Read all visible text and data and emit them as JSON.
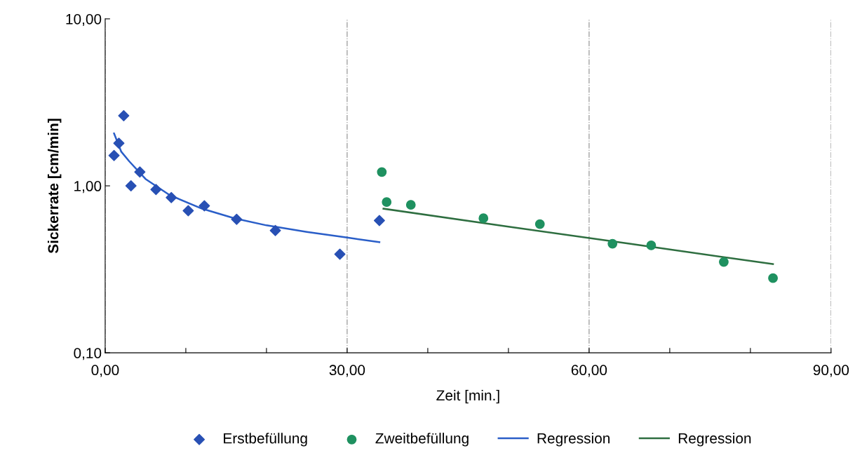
{
  "chart_data": {
    "type": "scatter",
    "xlabel": "Zeit [min.]",
    "ylabel": "Sickerrate [cm/min]",
    "log": "y",
    "grid": "x",
    "legend": "bottom",
    "xlim": [
      0,
      90
    ],
    "xticks": [
      {
        "value": 0,
        "label": "0,00"
      },
      {
        "value": 10,
        "label": null
      },
      {
        "value": 20,
        "label": null
      },
      {
        "value": 30,
        "label": "30,00"
      },
      {
        "value": 40,
        "label": null
      },
      {
        "value": 50,
        "label": null
      },
      {
        "value": 60,
        "label": "60,00"
      },
      {
        "value": 70,
        "label": null
      },
      {
        "value": 80,
        "label": null
      },
      {
        "value": 90,
        "label": "90,00"
      }
    ],
    "ylim": [
      0.1,
      10
    ],
    "yticks": [
      {
        "value": 0.1,
        "label": "0,10"
      },
      {
        "value": 1,
        "label": "1,00"
      },
      {
        "value": 10,
        "label": "10,00"
      }
    ],
    "series": [
      {
        "name": "Erstbefüllung",
        "marker": "diamond",
        "color": "#2850b4",
        "x": [
          1.1,
          1.7,
          2.3,
          3.2,
          4.3,
          6.3,
          8.2,
          10.3,
          12.3,
          16.3,
          21.1,
          29.1,
          34.0
        ],
        "values": [
          1.52,
          1.8,
          2.63,
          1.0,
          1.21,
          0.95,
          0.85,
          0.71,
          0.76,
          0.63,
          0.54,
          0.39,
          0.62
        ]
      },
      {
        "name": "Zweitbefüllung",
        "marker": "circle",
        "color": "#1f9160",
        "x": [
          34.3,
          34.9,
          37.9,
          46.9,
          53.9,
          62.9,
          67.7,
          76.7,
          82.8
        ],
        "values": [
          1.21,
          0.8,
          0.77,
          0.64,
          0.59,
          0.45,
          0.44,
          0.35,
          0.28
        ]
      },
      {
        "name": "Regression",
        "type": "line",
        "marker": "none",
        "color": "#2a5ec8",
        "x": [
          1.1,
          2,
          3,
          5,
          8,
          12,
          16,
          20,
          25,
          30,
          34
        ],
        "values": [
          2.06,
          1.6,
          1.4,
          1.1,
          0.88,
          0.73,
          0.64,
          0.58,
          0.53,
          0.49,
          0.46
        ]
      },
      {
        "name": "Regression",
        "type": "line",
        "marker": "none",
        "color": "#2e6e40",
        "x": [
          34.5,
          50,
          65,
          82.8
        ],
        "values": [
          0.73,
          0.57,
          0.45,
          0.34
        ]
      }
    ]
  }
}
